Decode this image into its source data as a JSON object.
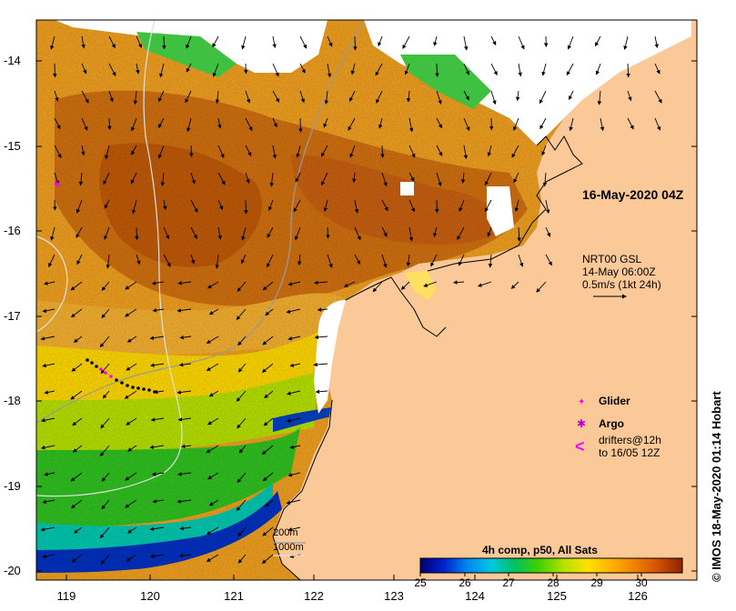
{
  "map": {
    "date_label": "16-May-2020 04Z",
    "current_info": {
      "line1": "NRT00 GSL",
      "line2": "14-May 06:00Z",
      "line3": "0.5m/s (1kt 24h)"
    },
    "y_ticks": [
      "-14",
      "-15",
      "-16",
      "-17",
      "-18",
      "-19",
      "-20"
    ],
    "x_ticks": [
      "119",
      "120",
      "121",
      "122",
      "123",
      "124",
      "125",
      "126"
    ],
    "legend": {
      "glider": "Glider",
      "argo": "Argo",
      "drifters_line1": "drifters@12h",
      "drifters_line2": "to 16/05 12Z",
      "glider_symbol": "✦",
      "argo_symbol": "✱",
      "drifter_symbol": "<"
    },
    "scale": {
      "label1": "200m",
      "label2": "1000m"
    },
    "colorbar": {
      "title": "4h comp, p50, All Sats",
      "ticks": [
        "25",
        "26",
        "27",
        "28",
        "29",
        "30"
      ],
      "range": [
        25,
        30.7
      ],
      "colors": [
        "#000070",
        "#0022cc",
        "#0088ee",
        "#00c8e0",
        "#00c060",
        "#40d000",
        "#b8e000",
        "#ffe000",
        "#ffb000",
        "#f08000",
        "#d05000",
        "#902000"
      ]
    },
    "credit": "© IMOS 18-May-2020 01:14 Hobart",
    "colors": {
      "land": "#fbc898",
      "glider": "#ff00ff",
      "argo": "#c000c0",
      "drifter": "#ff00ff"
    }
  }
}
